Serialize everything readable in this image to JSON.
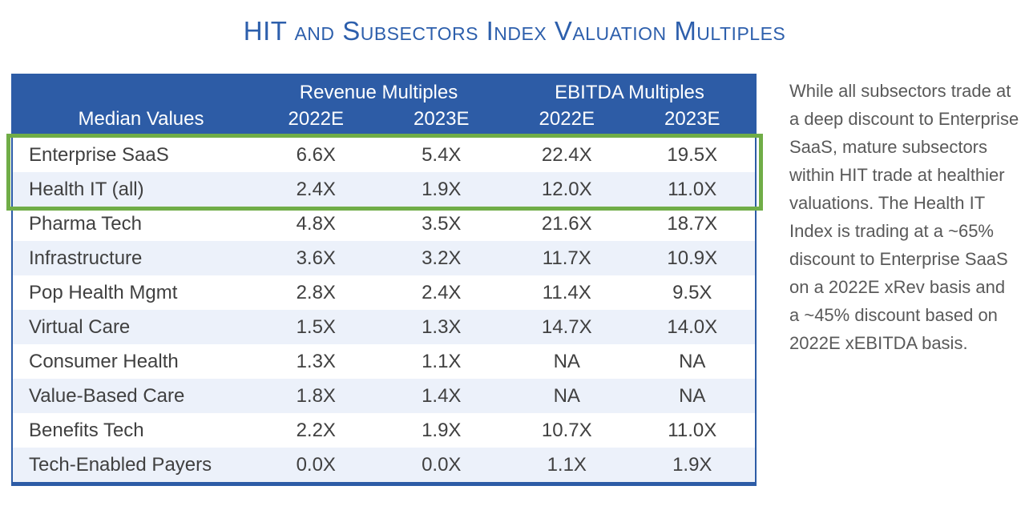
{
  "title": "HIT and Subsectors Index Valuation Multiples",
  "colors": {
    "title_blue": "#2D5FAC",
    "header_blue": "#2D5CA6",
    "row_alt_blue": "#ECF1FA",
    "highlight_green": "#70AD47",
    "data_text": "#404040",
    "note_text": "#595959"
  },
  "table": {
    "header": {
      "row_label": "Median Values",
      "groups": [
        {
          "label": "Revenue Multiples"
        },
        {
          "label": "EBITDA Multiples"
        }
      ],
      "subcolumns": [
        "2022E",
        "2023E",
        "2022E",
        "2023E"
      ]
    },
    "rows": [
      {
        "name": "Enterprise SaaS",
        "values": [
          "6.6X",
          "5.4X",
          "22.4X",
          "19.5X"
        ],
        "highlighted": true
      },
      {
        "name": "Health IT (all)",
        "values": [
          "2.4X",
          "1.9X",
          "12.0X",
          "11.0X"
        ],
        "highlighted": true
      },
      {
        "name": "Pharma Tech",
        "values": [
          "4.8X",
          "3.5X",
          "21.6X",
          "18.7X"
        ],
        "highlighted": false
      },
      {
        "name": "Infrastructure",
        "values": [
          "3.6X",
          "3.2X",
          "11.7X",
          "10.9X"
        ],
        "highlighted": false
      },
      {
        "name": "Pop Health Mgmt",
        "values": [
          "2.8X",
          "2.4X",
          "11.4X",
          "9.5X"
        ],
        "highlighted": false
      },
      {
        "name": "Virtual Care",
        "values": [
          "1.5X",
          "1.3X",
          "14.7X",
          "14.0X"
        ],
        "highlighted": false
      },
      {
        "name": "Consumer Health",
        "values": [
          "1.3X",
          "1.1X",
          "NA",
          "NA"
        ],
        "highlighted": false
      },
      {
        "name": "Value-Based Care",
        "values": [
          "1.8X",
          "1.4X",
          "NA",
          "NA"
        ],
        "highlighted": false
      },
      {
        "name": "Benefits Tech",
        "values": [
          "2.2X",
          "1.9X",
          "10.7X",
          "11.0X"
        ],
        "highlighted": false
      },
      {
        "name": "Tech-Enabled Payers",
        "values": [
          "0.0X",
          "0.0X",
          "1.1X",
          "1.9X"
        ],
        "highlighted": false
      }
    ]
  },
  "note": "While all subsectors trade at a deep discount to Enterprise SaaS, mature subsectors within HIT trade at healthier valuations. The Health IT Index is trading at a ~65% discount to Enterprise SaaS on a 2022E xRev basis and a ~45% discount based on 2022E xEBITDA basis.",
  "chart_data": {
    "type": "table",
    "title": "HIT and Subsectors Index Valuation Multiples",
    "column_groups": [
      "Revenue Multiples",
      "EBITDA Multiples"
    ],
    "columns": [
      "Median Values",
      "Revenue 2022E",
      "Revenue 2023E",
      "EBITDA 2022E",
      "EBITDA 2023E"
    ],
    "rows": [
      [
        "Enterprise SaaS",
        "6.6X",
        "5.4X",
        "22.4X",
        "19.5X"
      ],
      [
        "Health IT (all)",
        "2.4X",
        "1.9X",
        "12.0X",
        "11.0X"
      ],
      [
        "Pharma Tech",
        "4.8X",
        "3.5X",
        "21.6X",
        "18.7X"
      ],
      [
        "Infrastructure",
        "3.6X",
        "3.2X",
        "11.7X",
        "10.9X"
      ],
      [
        "Pop Health Mgmt",
        "2.8X",
        "2.4X",
        "11.4X",
        "9.5X"
      ],
      [
        "Virtual Care",
        "1.5X",
        "1.3X",
        "14.7X",
        "14.0X"
      ],
      [
        "Consumer Health",
        "1.3X",
        "1.1X",
        "NA",
        "NA"
      ],
      [
        "Value-Based Care",
        "1.8X",
        "1.4X",
        "NA",
        "NA"
      ],
      [
        "Benefits Tech",
        "2.2X",
        "1.9X",
        "10.7X",
        "11.0X"
      ],
      [
        "Tech-Enabled Payers",
        "0.0X",
        "0.0X",
        "1.1X",
        "1.9X"
      ]
    ],
    "highlighted_rows": [
      "Enterprise SaaS",
      "Health IT (all)"
    ],
    "annotation": "While all subsectors trade at a deep discount to Enterprise SaaS, mature subsectors within HIT trade at healthier valuations. The Health IT Index is trading at a ~65% discount to Enterprise SaaS on a 2022E xRev basis and a ~45% discount based on 2022E xEBITDA basis."
  }
}
